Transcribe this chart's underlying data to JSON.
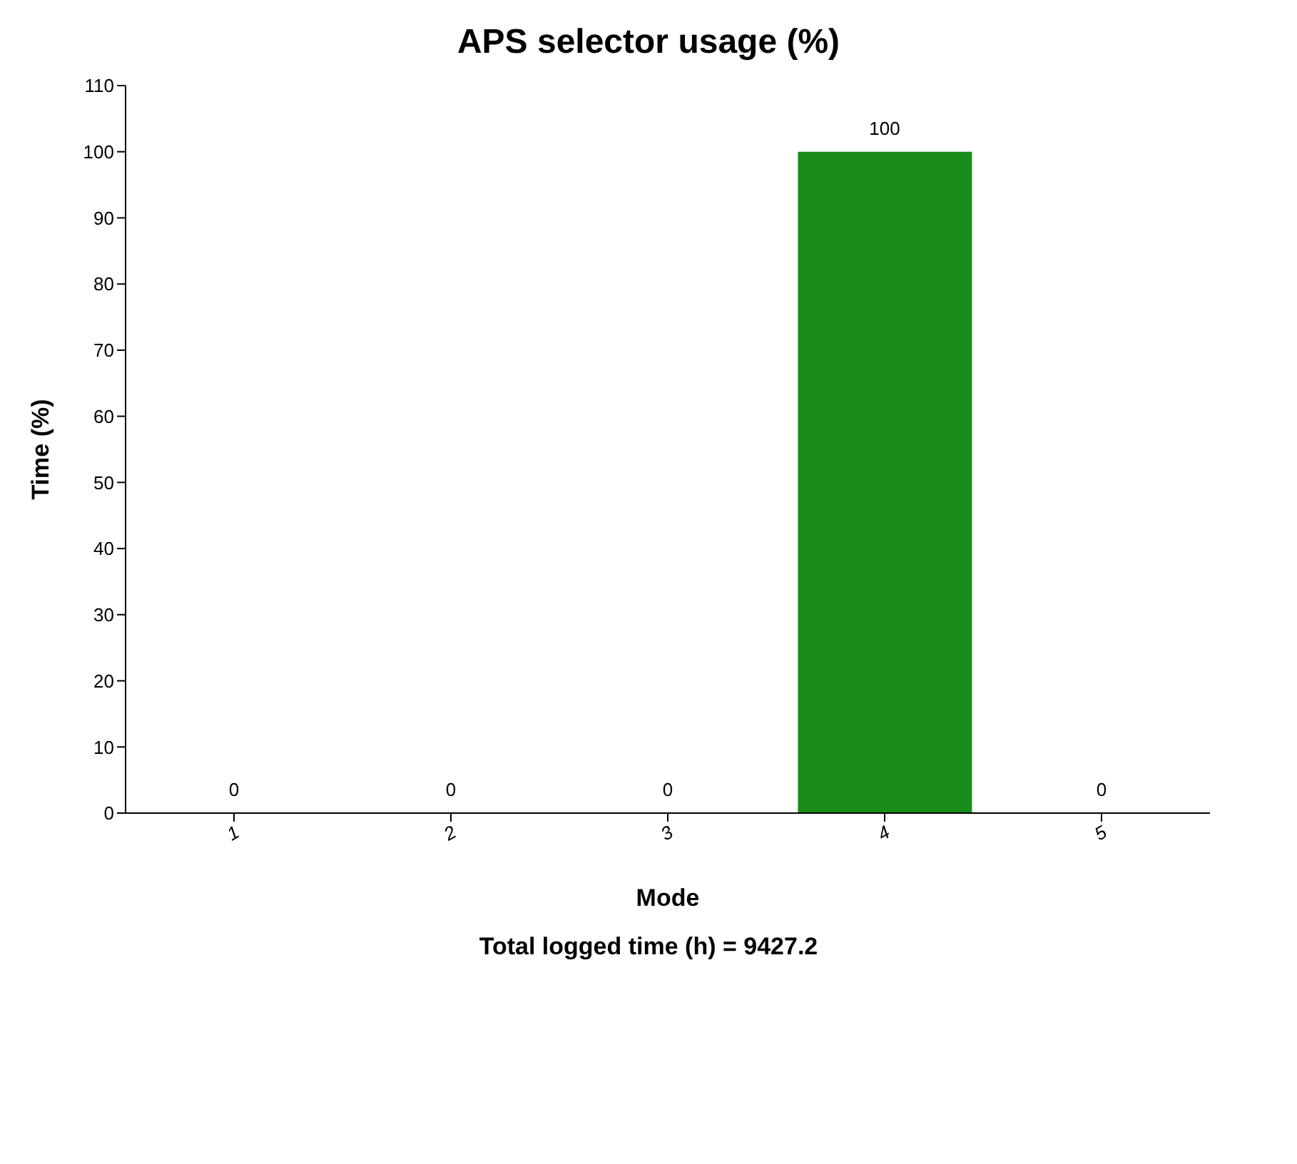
{
  "chart_data": {
    "type": "bar",
    "title": "APS selector usage (%)",
    "xlabel": "Mode",
    "ylabel": "Time (%)",
    "categories": [
      "1",
      "2",
      "3",
      "4",
      "5"
    ],
    "values": [
      0,
      0,
      0,
      100,
      0
    ],
    "color": "#1a8c1a",
    "ylim": [
      0,
      110
    ],
    "yticks": [
      0,
      10,
      20,
      30,
      40,
      50,
      60,
      70,
      80,
      90,
      100,
      110
    ],
    "data_labels": true,
    "annotations": [
      "Total logged time (h) = 9427.2"
    ]
  }
}
